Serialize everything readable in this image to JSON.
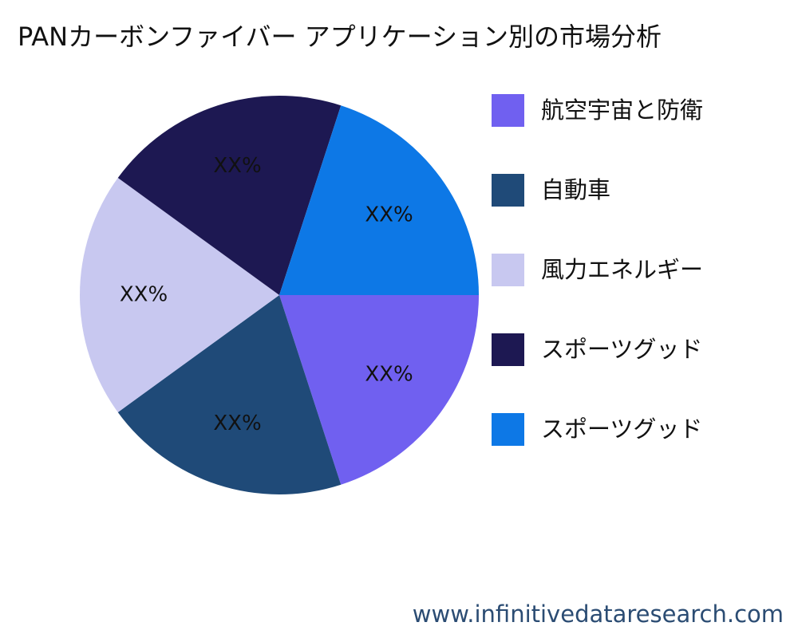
{
  "title": "PANカーボンファイバー アプリケーション別の市場分析",
  "chart_data": {
    "type": "pie",
    "title": "PANカーボンファイバー アプリケーション別の市場分析",
    "slices": [
      {
        "name": "航空宇宙と防衛",
        "value": 20,
        "label": "XX%",
        "color": "#7060f0"
      },
      {
        "name": "自動車",
        "value": 20,
        "label": "XX%",
        "color": "#1f4a78"
      },
      {
        "name": "風力エネルギー",
        "value": 20,
        "label": "XX%",
        "color": "#c8c8f0"
      },
      {
        "name": "スポーツグッド",
        "value": 20,
        "label": "XX%",
        "color": "#1d1852"
      },
      {
        "name": "スポーツグッド",
        "value": 20,
        "label": "XX%",
        "color": "#0d78e6"
      }
    ],
    "start_angle_deg": 0,
    "direction": "clockwise",
    "legend_position": "right"
  },
  "legend": {
    "items": [
      {
        "label": "航空宇宙と防衛",
        "color": "#7060f0"
      },
      {
        "label": "自動車",
        "color": "#1f4a78"
      },
      {
        "label": "風力エネルギー",
        "color": "#c8c8f0"
      },
      {
        "label": "スポーツグッド",
        "color": "#1d1852"
      },
      {
        "label": "スポーツグッド",
        "color": "#0d78e6"
      }
    ]
  },
  "watermark": "www.infinitivedataresearch.com"
}
